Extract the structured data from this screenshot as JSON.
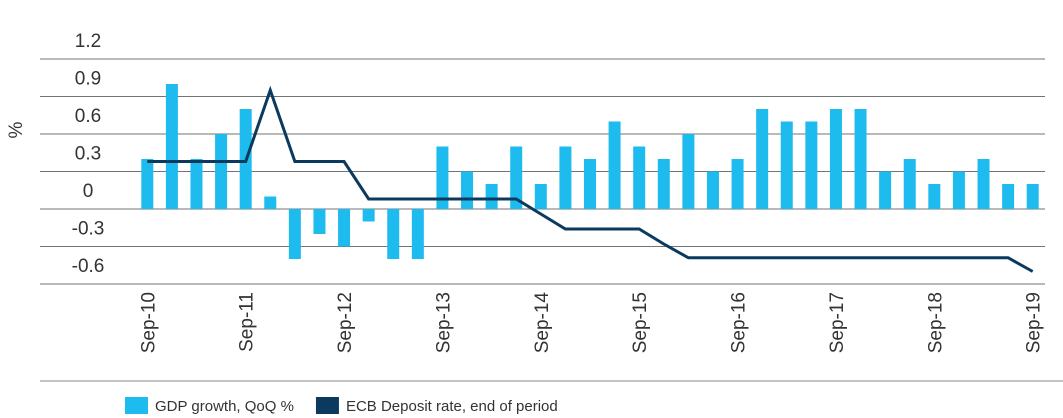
{
  "chart_data": {
    "type": "bar",
    "ylabel": "%",
    "categories": [
      "Sep-10",
      null,
      null,
      null,
      "Sep-11",
      null,
      null,
      null,
      "Sep-12",
      null,
      null,
      null,
      "Sep-13",
      null,
      null,
      null,
      "Sep-14",
      null,
      null,
      null,
      "Sep-15",
      null,
      null,
      null,
      "Sep-16",
      null,
      null,
      null,
      "Sep-17",
      null,
      null,
      null,
      "Sep-18",
      null,
      null,
      null,
      "Sep-19"
    ],
    "series": [
      {
        "name": "GDP growth, QoQ %",
        "color": "#1ebbee",
        "kind": "bar",
        "values": [
          0.4,
          1.0,
          0.4,
          0.6,
          0.8,
          0.1,
          -0.4,
          -0.2,
          -0.3,
          -0.1,
          -0.4,
          -0.4,
          0.5,
          0.3,
          0.2,
          0.5,
          0.2,
          0.5,
          0.4,
          0.7,
          0.5,
          0.4,
          0.6,
          0.3,
          0.4,
          0.8,
          0.7,
          0.7,
          0.8,
          0.8,
          0.3,
          0.4,
          0.2,
          0.3,
          0.4,
          0.2,
          0.2
        ]
      },
      {
        "name": "ECB Deposit rate, end of period",
        "color": "#0b3a5e",
        "kind": "line",
        "values": [
          0.38,
          0.38,
          0.38,
          0.38,
          0.38,
          0.95,
          0.38,
          0.38,
          0.38,
          0.08,
          0.08,
          0.08,
          0.08,
          0.08,
          0.08,
          0.08,
          -0.04,
          -0.16,
          -0.16,
          -0.16,
          -0.16,
          -0.28,
          -0.39,
          -0.39,
          -0.39,
          -0.39,
          -0.39,
          -0.39,
          -0.39,
          -0.39,
          -0.39,
          -0.39,
          -0.39,
          -0.39,
          -0.39,
          -0.39,
          -0.5
        ]
      }
    ],
    "ylim": [
      -0.6,
      1.2
    ],
    "yticks": [
      1.2,
      0.9,
      0.6,
      0.3,
      0,
      -0.3,
      -0.6
    ],
    "grid": true
  }
}
